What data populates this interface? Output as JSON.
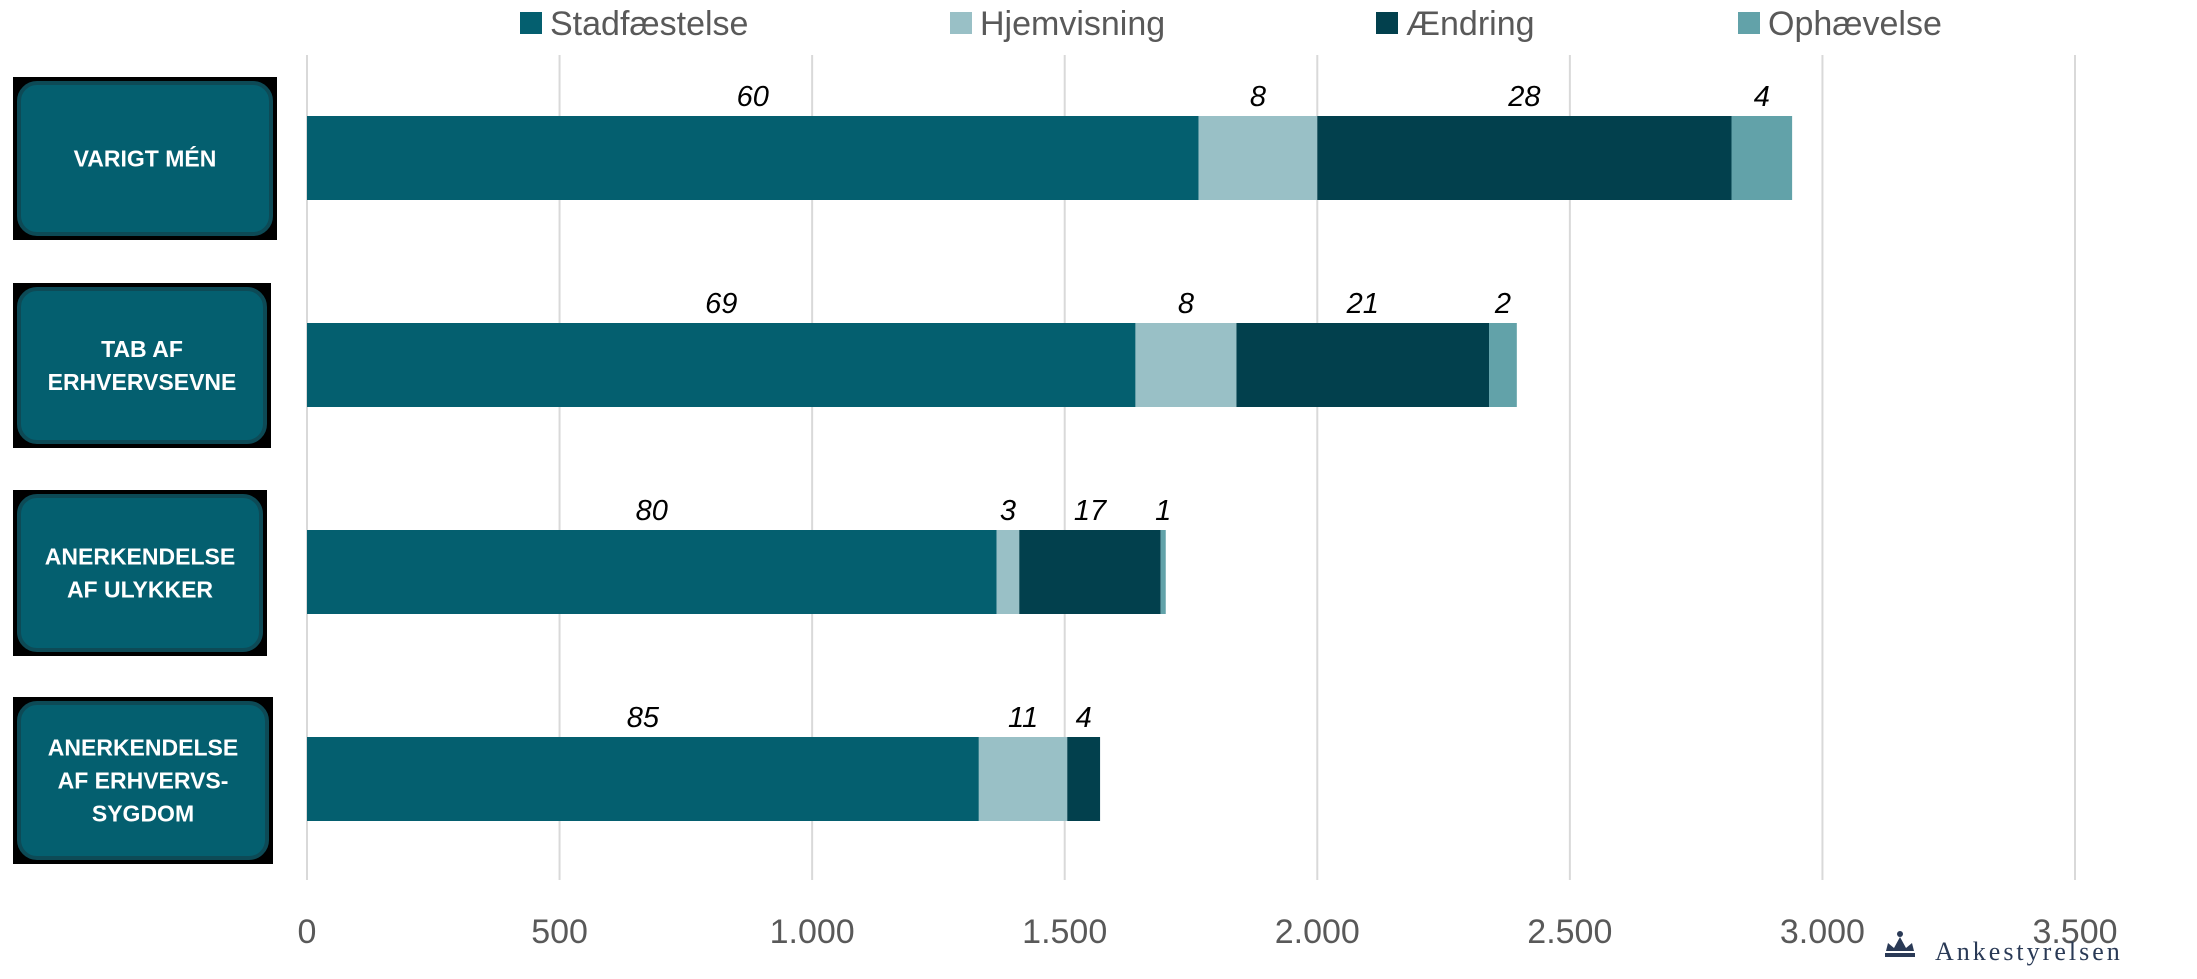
{
  "chart_data": {
    "type": "bar",
    "orientation": "horizontal",
    "stacked": true,
    "categories": [
      "VARIGT MÉN",
      "TAB AF ERHVERVSEVNE",
      "ANERKENDELSE AF ULYKKER",
      "ANERKENDELSE AF ERHVERVS-SYGDOM"
    ],
    "category_lines": [
      [
        "VARIGT MÉN"
      ],
      [
        "TAB AF",
        "ERHVERVSEVNE"
      ],
      [
        "ANERKENDELSE",
        "AF ULYKKER"
      ],
      [
        "ANERKENDELSE",
        "AF ERHVERVS-",
        "SYGDOM"
      ]
    ],
    "series": [
      {
        "name": "Stadfæstelse",
        "color": "#045f6f",
        "values": [
          1765,
          1640,
          1365,
          1330
        ],
        "labels": [
          "60",
          "69",
          "80",
          "85"
        ]
      },
      {
        "name": "Hjemvisning",
        "color": "#99c0c6",
        "values": [
          235,
          200,
          45,
          175
        ],
        "labels": [
          "8",
          "8",
          "3",
          "11"
        ]
      },
      {
        "name": "Ændring",
        "color": "#02404d",
        "values": [
          820,
          500,
          280,
          65
        ],
        "labels": [
          "28",
          "21",
          "17",
          "4"
        ]
      },
      {
        "name": "Ophævelse",
        "color": "#62a2a9",
        "values": [
          120,
          55,
          10,
          0
        ],
        "labels": [
          "4",
          "2",
          "1",
          ""
        ]
      }
    ],
    "xlim": [
      0,
      3500
    ],
    "xticks": [
      {
        "value": 0,
        "label": "0"
      },
      {
        "value": 500,
        "label": "500"
      },
      {
        "value": 1000,
        "label": "1.000"
      },
      {
        "value": 1500,
        "label": "1.500"
      },
      {
        "value": 2000,
        "label": "2.000"
      },
      {
        "value": 2500,
        "label": "2.500"
      },
      {
        "value": 3000,
        "label": "3.000"
      },
      {
        "value": 3500,
        "label": "3.500"
      }
    ],
    "title": "",
    "xlabel": "",
    "ylabel": "",
    "grid": "vertical",
    "legend": "top"
  },
  "logo": {
    "text": "Ankestyrelsen",
    "icon": "crown-icon"
  }
}
